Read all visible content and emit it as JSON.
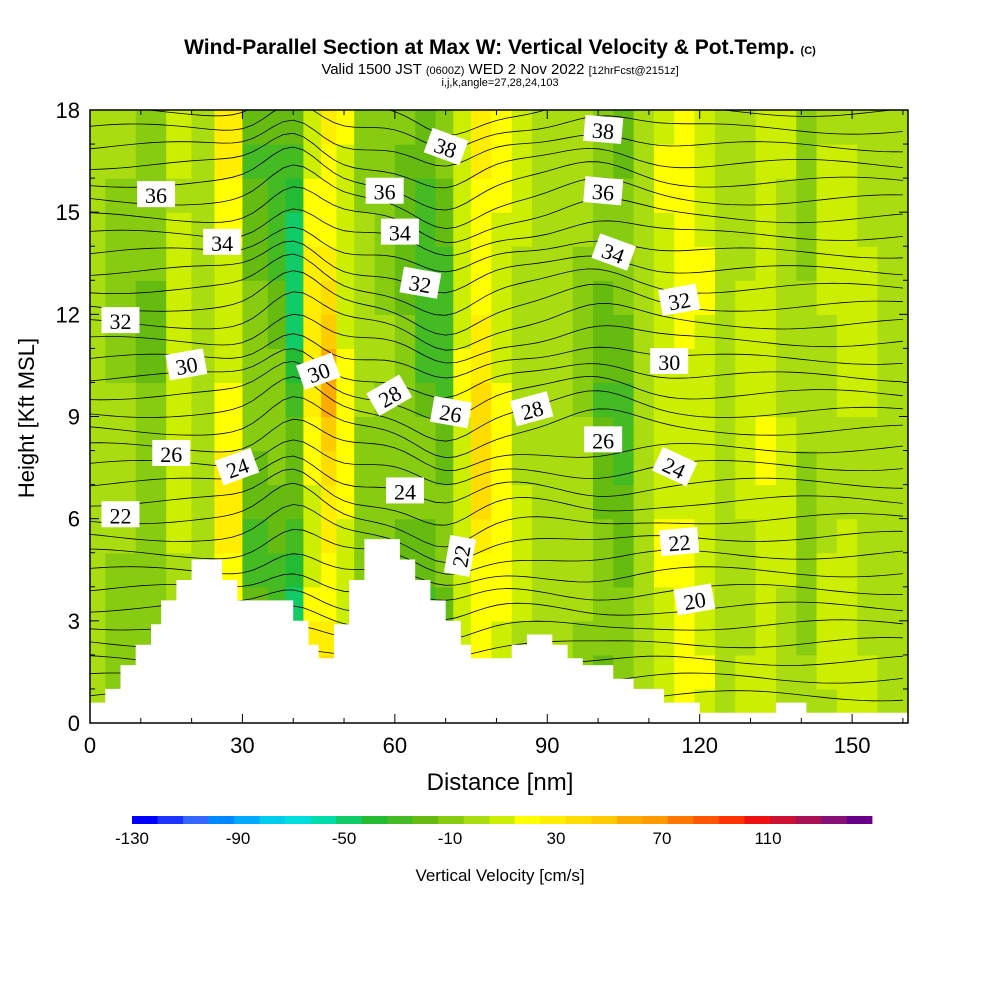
{
  "title": {
    "main": "Wind-Parallel Section at Max W: Vertical Velocity & Pot.Temp.",
    "unit": "(C)",
    "valid_prefix": "Valid 1500 JST",
    "valid_utc": "(0600Z)",
    "valid_date": "WED 2 Nov 2022",
    "forecast": "[12hrFcst@2151z]",
    "indices": "i,j,k,angle=27,28,24,103"
  },
  "chart_data": {
    "type": "heatmap",
    "xlabel": "Distance [nm]",
    "ylabel": "Height [Kft MSL]",
    "xlim": [
      0,
      161
    ],
    "ylim": [
      0,
      18
    ],
    "xticks": [
      0,
      30,
      60,
      90,
      120,
      150
    ],
    "yticks": [
      0,
      3,
      6,
      9,
      12,
      15,
      18
    ],
    "colorbar": {
      "label": "Vertical Velocity [cm/s]",
      "ticks": [
        "-130",
        "-90",
        "-50",
        "-10",
        "30",
        "70",
        "110"
      ],
      "levels": [
        -130,
        150
      ],
      "colors": [
        "#0000ff",
        "#1a33ff",
        "#3366ff",
        "#0088ff",
        "#00aaff",
        "#00ccee",
        "#00dddd",
        "#00ddaa",
        "#11cc66",
        "#22bb33",
        "#44bb22",
        "#66bb11",
        "#88cc11",
        "#aadd11",
        "#ccee00",
        "#ffff00",
        "#ffee00",
        "#ffdd00",
        "#ffcc00",
        "#ffaa00",
        "#ff9900",
        "#ff7700",
        "#ff5500",
        "#ff3300",
        "#ee1111",
        "#cc1133",
        "#aa1155",
        "#881177",
        "#660088"
      ]
    },
    "columns": [
      {
        "x": 0,
        "w": 0
      },
      {
        "x": 6,
        "w": -6
      },
      {
        "x": 12,
        "w": -14
      },
      {
        "x": 18,
        "w": 12
      },
      {
        "x": 22,
        "w": 4
      },
      {
        "x": 27,
        "w": 26
      },
      {
        "x": 33,
        "w": -22
      },
      {
        "x": 37,
        "w": -26
      },
      {
        "x": 40,
        "w": -48
      },
      {
        "x": 44,
        "w": 30
      },
      {
        "x": 47,
        "w": 50
      },
      {
        "x": 50,
        "w": 18
      },
      {
        "x": 54,
        "w": -6
      },
      {
        "x": 58,
        "w": -10
      },
      {
        "x": 62,
        "w": -18
      },
      {
        "x": 66,
        "w": -30
      },
      {
        "x": 70,
        "w": -28
      },
      {
        "x": 73,
        "w": 14
      },
      {
        "x": 77,
        "w": 38
      },
      {
        "x": 81,
        "w": 22
      },
      {
        "x": 85,
        "w": 6
      },
      {
        "x": 89,
        "w": -2
      },
      {
        "x": 93,
        "w": 2
      },
      {
        "x": 97,
        "w": -6
      },
      {
        "x": 101,
        "w": -22
      },
      {
        "x": 105,
        "w": -24
      },
      {
        "x": 109,
        "w": -4
      },
      {
        "x": 113,
        "w": 14
      },
      {
        "x": 117,
        "w": 22
      },
      {
        "x": 121,
        "w": 14
      },
      {
        "x": 125,
        "w": -2
      },
      {
        "x": 129,
        "w": 8
      },
      {
        "x": 133,
        "w": 14
      },
      {
        "x": 137,
        "w": 6
      },
      {
        "x": 141,
        "w": -6
      },
      {
        "x": 145,
        "w": 6
      },
      {
        "x": 149,
        "w": 10
      },
      {
        "x": 153,
        "w": 6
      },
      {
        "x": 157,
        "w": 0
      },
      {
        "x": 161,
        "w": -2
      }
    ],
    "terrain": [
      [
        0,
        0.6
      ],
      [
        3,
        0.6
      ],
      [
        3,
        1.0
      ],
      [
        6,
        1.0
      ],
      [
        6,
        1.7
      ],
      [
        9,
        1.7
      ],
      [
        9,
        2.3
      ],
      [
        12,
        2.3
      ],
      [
        12,
        2.9
      ],
      [
        14,
        2.9
      ],
      [
        14,
        3.6
      ],
      [
        17,
        3.6
      ],
      [
        17,
        4.2
      ],
      [
        20,
        4.2
      ],
      [
        20,
        4.8
      ],
      [
        26,
        4.8
      ],
      [
        26,
        4.2
      ],
      [
        29,
        4.2
      ],
      [
        29,
        3.6
      ],
      [
        33,
        3.6
      ],
      [
        33,
        3.6
      ],
      [
        40,
        3.6
      ],
      [
        40,
        3.0
      ],
      [
        43,
        3.0
      ],
      [
        43,
        2.3
      ],
      [
        45,
        2.3
      ],
      [
        45,
        1.9
      ],
      [
        48,
        1.9
      ],
      [
        48,
        2.9
      ],
      [
        51,
        2.9
      ],
      [
        51,
        4.2
      ],
      [
        54,
        4.2
      ],
      [
        54,
        5.4
      ],
      [
        61,
        5.4
      ],
      [
        61,
        4.8
      ],
      [
        64,
        4.8
      ],
      [
        64,
        4.2
      ],
      [
        67,
        4.2
      ],
      [
        67,
        3.6
      ],
      [
        70,
        3.6
      ],
      [
        70,
        3.0
      ],
      [
        73,
        3.0
      ],
      [
        73,
        2.3
      ],
      [
        75,
        2.3
      ],
      [
        75,
        1.9
      ],
      [
        83,
        1.9
      ],
      [
        83,
        2.3
      ],
      [
        86,
        2.3
      ],
      [
        86,
        2.6
      ],
      [
        91,
        2.6
      ],
      [
        91,
        2.3
      ],
      [
        94,
        2.3
      ],
      [
        94,
        1.9
      ],
      [
        97,
        1.9
      ],
      [
        97,
        1.7
      ],
      [
        103,
        1.7
      ],
      [
        103,
        1.3
      ],
      [
        107,
        1.3
      ],
      [
        107,
        1.0
      ],
      [
        113,
        1.0
      ],
      [
        113,
        0.6
      ],
      [
        120,
        0.6
      ],
      [
        120,
        0.3
      ],
      [
        135,
        0.3
      ],
      [
        135,
        0.6
      ],
      [
        141,
        0.6
      ],
      [
        141,
        0.3
      ],
      [
        161,
        0.3
      ],
      [
        161,
        0
      ]
    ],
    "contour_labels": [
      {
        "text": "38",
        "x": 70,
        "y": 16.9,
        "angle": 20
      },
      {
        "text": "38",
        "x": 101,
        "y": 17.4,
        "angle": 5
      },
      {
        "text": "36",
        "x": 13,
        "y": 15.5,
        "angle": 0
      },
      {
        "text": "36",
        "x": 58,
        "y": 15.6,
        "angle": 0
      },
      {
        "text": "36",
        "x": 101,
        "y": 15.6,
        "angle": 5
      },
      {
        "text": "34",
        "x": 26,
        "y": 14.1,
        "angle": 0
      },
      {
        "text": "34",
        "x": 61,
        "y": 14.4,
        "angle": 0
      },
      {
        "text": "34",
        "x": 103,
        "y": 13.8,
        "angle": 20
      },
      {
        "text": "32",
        "x": 6,
        "y": 11.8,
        "angle": 0
      },
      {
        "text": "32",
        "x": 65,
        "y": 12.9,
        "angle": 10
      },
      {
        "text": "32",
        "x": 116,
        "y": 12.4,
        "angle": -10
      },
      {
        "text": "30",
        "x": 19,
        "y": 10.5,
        "angle": -10
      },
      {
        "text": "30",
        "x": 45,
        "y": 10.3,
        "angle": -20
      },
      {
        "text": "30",
        "x": 114,
        "y": 10.6,
        "angle": 0
      },
      {
        "text": "28",
        "x": 59,
        "y": 9.6,
        "angle": -30
      },
      {
        "text": "28",
        "x": 87,
        "y": 9.2,
        "angle": -15
      },
      {
        "text": "26",
        "x": 16,
        "y": 7.9,
        "angle": 0
      },
      {
        "text": "26",
        "x": 71,
        "y": 9.1,
        "angle": 10
      },
      {
        "text": "26",
        "x": 101,
        "y": 8.3,
        "angle": 0
      },
      {
        "text": "24",
        "x": 29,
        "y": 7.5,
        "angle": -20
      },
      {
        "text": "24",
        "x": 62,
        "y": 6.8,
        "angle": 0
      },
      {
        "text": "24",
        "x": 115,
        "y": 7.5,
        "angle": 25
      },
      {
        "text": "22",
        "x": 6,
        "y": 6.1,
        "angle": 0
      },
      {
        "text": "22",
        "x": 73,
        "y": 4.9,
        "angle": -80
      },
      {
        "text": "22",
        "x": 116,
        "y": 5.3,
        "angle": -5
      },
      {
        "text": "20",
        "x": 119,
        "y": 3.6,
        "angle": -10
      }
    ]
  }
}
